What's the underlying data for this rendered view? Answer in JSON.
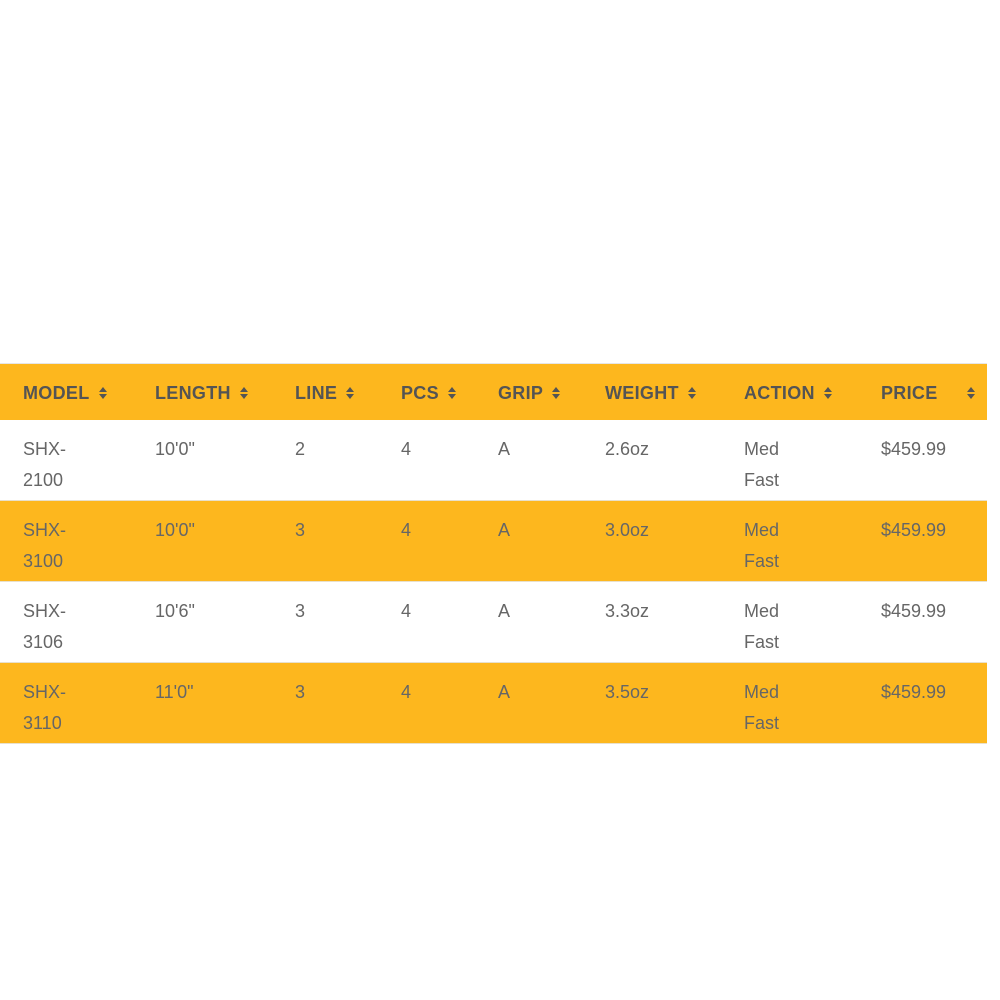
{
  "table": {
    "header_color": "#FDB71E",
    "stripe_color": "#FDB71E",
    "sort_icon": "sort-up-down-icon",
    "columns": [
      "MODEL",
      "LENGTH",
      "LINE",
      "PCS",
      "GRIP",
      "WEIGHT",
      "ACTION",
      "PRICE"
    ],
    "rows": [
      [
        "SHX-2100",
        "10'0\"",
        "2",
        "4",
        "A",
        "2.6oz",
        "Med Fast",
        "$459.99"
      ],
      [
        "SHX-3100",
        "10'0\"",
        "3",
        "4",
        "A",
        "3.0oz",
        "Med Fast",
        "$459.99"
      ],
      [
        "SHX-3106",
        "10'6\"",
        "3",
        "4",
        "A",
        "3.3oz",
        "Med Fast",
        "$459.99"
      ],
      [
        "SHX-3110",
        "11'0\"",
        "3",
        "4",
        "A",
        "3.5oz",
        "Med Fast",
        "$459.99"
      ]
    ]
  }
}
